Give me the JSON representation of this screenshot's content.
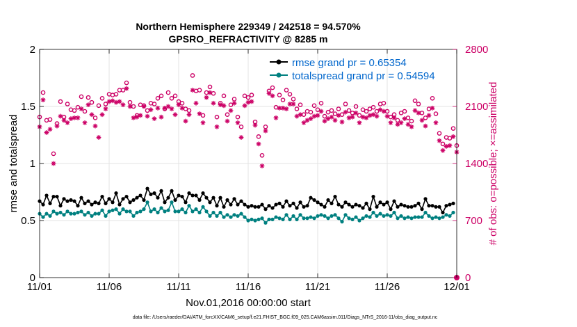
{
  "chart_data": {
    "type": "line",
    "title_line1": "Northern Hemisphere 229349 / 242518 = 94.570%",
    "title_line2": "GPSRO_REFRACTIVITY @ 8285 m",
    "xlabel": "Nov.01,2016 00:00:00 start",
    "ylabel_left": "rmse and totalspread",
    "ylabel_right": "# of obs: o=possible; ×=assimilated",
    "xlim": [
      0,
      30
    ],
    "ylim_left": [
      0,
      2
    ],
    "ylim_right": [
      0,
      2800
    ],
    "x_ticks": [
      {
        "value": 0,
        "label": "11/01"
      },
      {
        "value": 5,
        "label": "11/06"
      },
      {
        "value": 10,
        "label": "11/11"
      },
      {
        "value": 15,
        "label": "11/16"
      },
      {
        "value": 20,
        "label": "11/21"
      },
      {
        "value": 25,
        "label": "11/26"
      },
      {
        "value": 30,
        "label": "12/01"
      }
    ],
    "y_ticks_left": [
      {
        "value": 0,
        "label": "0"
      },
      {
        "value": 0.5,
        "label": "0.5"
      },
      {
        "value": 1,
        "label": "1"
      },
      {
        "value": 1.5,
        "label": "1.5"
      },
      {
        "value": 2,
        "label": "2"
      }
    ],
    "y_ticks_right": [
      {
        "value": 0,
        "label": "0"
      },
      {
        "value": 700,
        "label": "700"
      },
      {
        "value": 1400,
        "label": "1400"
      },
      {
        "value": 2100,
        "label": "2100"
      },
      {
        "value": 2800,
        "label": "2800"
      }
    ],
    "grid": true,
    "legend_position": "top-right",
    "series": [
      {
        "name": "rmse grand pr = 0.65354",
        "color": "#000000",
        "marker": "filled-circle",
        "axis": "left",
        "x": [
          0,
          0.25,
          0.5,
          0.75,
          1,
          1.25,
          1.5,
          1.75,
          2,
          2.25,
          2.5,
          2.75,
          3,
          3.25,
          3.5,
          3.75,
          4,
          4.25,
          4.5,
          4.75,
          5,
          5.25,
          5.5,
          5.75,
          6,
          6.25,
          6.5,
          6.75,
          7,
          7.25,
          7.5,
          7.75,
          8,
          8.25,
          8.5,
          8.75,
          9,
          9.25,
          9.5,
          9.75,
          10,
          10.25,
          10.5,
          10.75,
          11,
          11.25,
          11.5,
          11.75,
          12,
          12.25,
          12.5,
          12.75,
          13,
          13.25,
          13.5,
          13.75,
          14,
          14.25,
          14.5,
          14.75,
          15,
          15.25,
          15.5,
          15.75,
          16,
          16.25,
          16.5,
          16.75,
          17,
          17.25,
          17.5,
          17.75,
          18,
          18.25,
          18.5,
          18.75,
          19,
          19.25,
          19.5,
          19.75,
          20,
          20.25,
          20.5,
          20.75,
          21,
          21.25,
          21.5,
          21.75,
          22,
          22.25,
          22.5,
          22.75,
          23,
          23.25,
          23.5,
          23.75,
          24,
          24.25,
          24.5,
          24.75,
          25,
          25.25,
          25.5,
          25.75,
          26,
          26.25,
          26.5,
          26.75,
          27,
          27.25,
          27.5,
          27.75,
          28,
          28.25,
          28.5,
          28.75,
          29,
          29.25,
          29.5,
          29.75
        ],
        "y": [
          0.67,
          0.64,
          0.72,
          0.65,
          0.71,
          0.71,
          0.63,
          0.69,
          0.67,
          0.68,
          0.67,
          0.63,
          0.7,
          0.65,
          0.67,
          0.64,
          0.66,
          0.65,
          0.71,
          0.65,
          0.69,
          0.66,
          0.74,
          0.64,
          0.69,
          0.71,
          0.66,
          0.68,
          0.7,
          0.72,
          0.68,
          0.78,
          0.73,
          0.74,
          0.7,
          0.76,
          0.66,
          0.7,
          0.76,
          0.68,
          0.72,
          0.71,
          0.66,
          0.74,
          0.72,
          0.72,
          0.68,
          0.74,
          0.7,
          0.66,
          0.7,
          0.63,
          0.7,
          0.62,
          0.68,
          0.64,
          0.69,
          0.64,
          0.67,
          0.64,
          0.62,
          0.63,
          0.62,
          0.62,
          0.64,
          0.6,
          0.63,
          0.61,
          0.64,
          0.65,
          0.62,
          0.67,
          0.63,
          0.65,
          0.61,
          0.66,
          0.62,
          0.63,
          0.7,
          0.68,
          0.66,
          0.64,
          0.62,
          0.68,
          0.65,
          0.71,
          0.64,
          0.62,
          0.66,
          0.64,
          0.62,
          0.64,
          0.63,
          0.61,
          0.65,
          0.6,
          0.71,
          0.62,
          0.66,
          0.64,
          0.66,
          0.6,
          0.67,
          0.62,
          0.64,
          0.63,
          0.62,
          0.62,
          0.63,
          0.65,
          0.6,
          0.69,
          0.63,
          0.63,
          0.62,
          0.62,
          0.57,
          0.63,
          0.64,
          0.65
        ],
        "y_end": 0.67
      },
      {
        "name": "totalspread grand pr = 0.54594",
        "color": "#008080",
        "marker": "filled-circle",
        "axis": "left",
        "x_same_as_rmse": true,
        "y": [
          0.56,
          0.53,
          0.56,
          0.54,
          0.58,
          0.56,
          0.57,
          0.55,
          0.58,
          0.56,
          0.56,
          0.57,
          0.58,
          0.55,
          0.57,
          0.54,
          0.56,
          0.56,
          0.59,
          0.54,
          0.58,
          0.59,
          0.6,
          0.56,
          0.6,
          0.58,
          0.58,
          0.54,
          0.57,
          0.58,
          0.6,
          0.66,
          0.58,
          0.6,
          0.57,
          0.61,
          0.58,
          0.59,
          0.66,
          0.58,
          0.58,
          0.6,
          0.57,
          0.63,
          0.58,
          0.6,
          0.57,
          0.62,
          0.58,
          0.54,
          0.57,
          0.54,
          0.57,
          0.53,
          0.55,
          0.53,
          0.55,
          0.54,
          0.56,
          0.53,
          0.5,
          0.51,
          0.5,
          0.51,
          0.52,
          0.48,
          0.51,
          0.51,
          0.53,
          0.52,
          0.51,
          0.55,
          0.51,
          0.54,
          0.51,
          0.55,
          0.52,
          0.52,
          0.53,
          0.52,
          0.54,
          0.55,
          0.54,
          0.52,
          0.54,
          0.55,
          0.52,
          0.49,
          0.55,
          0.52,
          0.51,
          0.53,
          0.5,
          0.52,
          0.54,
          0.53,
          0.57,
          0.54,
          0.56,
          0.54,
          0.55,
          0.54,
          0.57,
          0.52,
          0.54,
          0.52,
          0.53,
          0.52,
          0.53,
          0.53,
          0.53,
          0.57,
          0.54,
          0.52,
          0.53,
          0.52,
          0.53,
          0.55,
          0.54,
          0.57
        ],
        "y_end": 0.56
      },
      {
        "name": "possible",
        "color": "#cc0066",
        "marker": "open-circle",
        "axis": "right",
        "x_same_as_rmse": true,
        "y": [
          1970,
          2270,
          1930,
          1940,
          1520,
          1890,
          2160,
          1970,
          2130,
          2060,
          2050,
          2090,
          2220,
          2040,
          2210,
          2150,
          1960,
          2110,
          2200,
          2130,
          2250,
          2240,
          2250,
          2300,
          2300,
          2390,
          2150,
          2100,
          1990,
          2120,
          2110,
          2050,
          2140,
          2130,
          2200,
          2230,
          2070,
          2270,
          2200,
          2230,
          2160,
          2140,
          2070,
          2050,
          2480,
          2290,
          2300,
          1990,
          2270,
          2340,
          2260,
          1970,
          2140,
          2230,
          2000,
          2120,
          2190,
          1970,
          1850,
          2230,
          2210,
          2240,
          1910,
          1730,
          1500,
          1850,
          2290,
          2330,
          2090,
          2240,
          2180,
          2300,
          2250,
          2190,
          2070,
          2120,
          2000,
          2040,
          2030,
          2110,
          2060,
          2140,
          1980,
          2030,
          2050,
          2010,
          2070,
          2000,
          2130,
          2050,
          2020,
          2100,
          1990,
          2060,
          2040,
          2070,
          2090,
          2040,
          2130,
          2140,
          2040,
          1970,
          2000,
          1930,
          2020,
          2040,
          1960,
          1920,
          2170,
          2130,
          2020,
          1960,
          2070,
          2200,
          2010,
          1770,
          1640,
          1720,
          1710,
          1830
        ],
        "y_end": 1620
      },
      {
        "name": "assimilated",
        "color": "#cc0066",
        "marker": "x-star",
        "axis": "right",
        "x_same_as_rmse": true,
        "y": [
          1850,
          2180,
          1780,
          1820,
          1400,
          1860,
          1980,
          1930,
          1900,
          1950,
          1960,
          1960,
          2070,
          1900,
          2120,
          2000,
          1860,
          1720,
          2000,
          2070,
          2160,
          2170,
          2150,
          2160,
          2120,
          2320,
          2100,
          1960,
          1970,
          1990,
          2100,
          1980,
          2060,
          1950,
          2080,
          1970,
          2080,
          2100,
          2070,
          2000,
          2120,
          2080,
          1920,
          2000,
          2300,
          2140,
          2010,
          1900,
          2210,
          2270,
          2140,
          1850,
          2120,
          2110,
          1920,
          2050,
          2140,
          1900,
          1720,
          2110,
          2150,
          2160,
          1870,
          1640,
          1370,
          1800,
          2260,
          2230,
          1960,
          2080,
          2080,
          2070,
          2130,
          2130,
          1980,
          2000,
          1900,
          1930,
          1950,
          1980,
          1990,
          2040,
          1920,
          1950,
          1970,
          1930,
          1990,
          1910,
          2030,
          1960,
          1970,
          2020,
          1900,
          1970,
          1960,
          1990,
          2000,
          1980,
          2060,
          2040,
          1980,
          1900,
          1960,
          1880,
          1900,
          1950,
          1880,
          1850,
          2050,
          2020,
          1930,
          1860,
          1990,
          2080,
          1900,
          1680,
          1560,
          1610,
          1620,
          1730
        ],
        "y_end": 1540
      }
    ],
    "footer_text": "data file: /Users/raeder/DAI/ATM_forcXX/CAM6_setup/f.e21.FHIST_BGC.f09_025.CAM6assim.011/Diags_NTrS_2016-11/obs_diag_output.nc"
  },
  "colors": {
    "rmse": "#000000",
    "spread": "#008080",
    "obs": "#cc0066",
    "legend_text": "#0066cc",
    "grid": "#e3e3e3"
  }
}
